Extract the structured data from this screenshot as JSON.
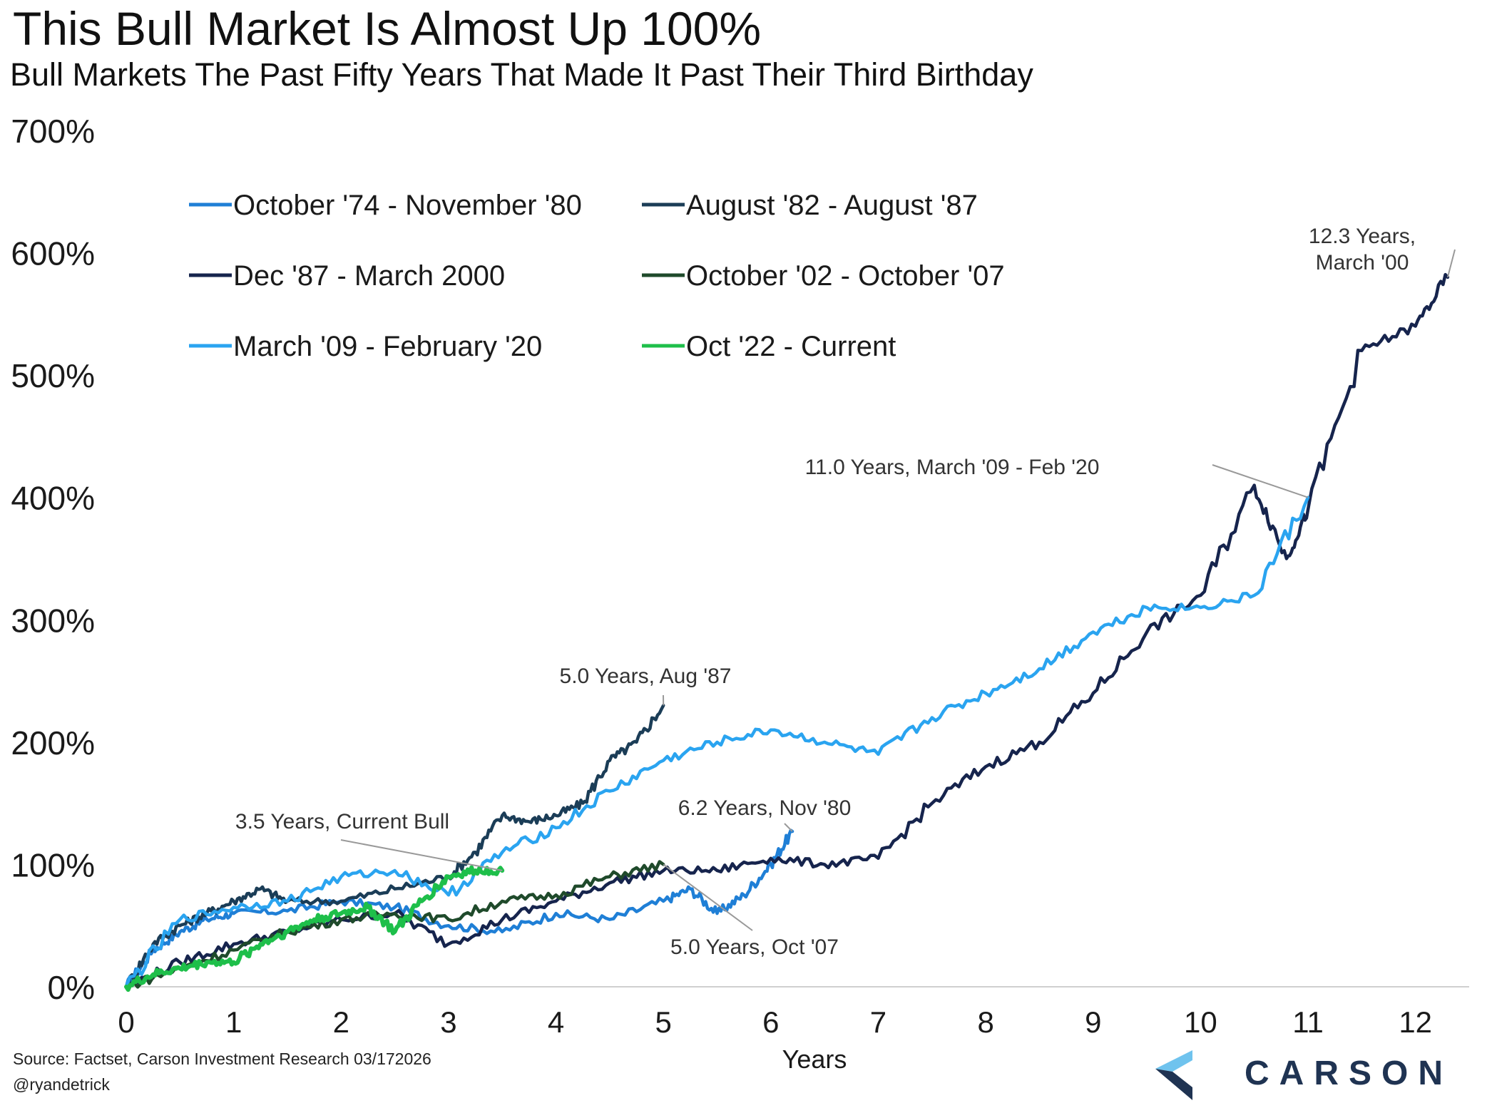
{
  "title": "This Bull Market Is Almost Up 100%",
  "subtitle": "Bull Markets The Past Fifty Years That Made It Past Their Third Birthday",
  "source": "Source: Factset, Carson Investment Research 03/172026",
  "handle": "@ryandetrick",
  "brand": "CARSON",
  "colors": {
    "axis": "#cfcfcf",
    "text": "#1a1a1a",
    "annotation_line": "#999999"
  },
  "chart_data": {
    "type": "line",
    "xlabel": "Years",
    "ylabel": "",
    "xlim": [
      0,
      12.5
    ],
    "ylim": [
      0,
      700
    ],
    "x_ticks": [
      0,
      1,
      2,
      3,
      4,
      5,
      6,
      7,
      8,
      9,
      10,
      11,
      12
    ],
    "x_tick_labels": [
      "0",
      "1",
      "2",
      "3",
      "4",
      "5",
      "6",
      "7",
      "8",
      "9",
      "10",
      "11",
      "12"
    ],
    "y_ticks": [
      0,
      100,
      200,
      300,
      400,
      500,
      600,
      700
    ],
    "y_tick_labels": [
      "0%",
      "100%",
      "200%",
      "300%",
      "400%",
      "500%",
      "600%",
      "700%"
    ],
    "grid": false,
    "legend_position": "top-left",
    "series": [
      {
        "name": "October '74 - November '80",
        "color": "#1f7fd6",
        "x": [
          0,
          0.25,
          0.5,
          0.75,
          1,
          1.5,
          2,
          2.5,
          3,
          3.5,
          4,
          4.5,
          5,
          5.25,
          5.5,
          5.75,
          6,
          6.2
        ],
        "y": [
          0,
          30,
          45,
          55,
          60,
          62,
          70,
          65,
          50,
          45,
          60,
          55,
          70,
          80,
          60,
          75,
          100,
          127
        ]
      },
      {
        "name": "August '82 - August '87",
        "color": "#1b3d57",
        "x": [
          0,
          0.25,
          0.5,
          0.75,
          1,
          1.25,
          1.5,
          2,
          2.5,
          3,
          3.25,
          3.5,
          3.75,
          4,
          4.25,
          4.5,
          4.75,
          5
        ],
        "y": [
          0,
          35,
          50,
          60,
          70,
          80,
          70,
          70,
          80,
          90,
          110,
          140,
          135,
          140,
          150,
          185,
          200,
          230
        ]
      },
      {
        "name": "Dec '87 - March 2000",
        "color": "#16244d",
        "x": [
          0,
          0.5,
          1,
          1.5,
          2,
          2.5,
          3,
          3.5,
          4,
          4.5,
          5,
          5.5,
          6,
          6.5,
          7,
          7.5,
          8,
          8.5,
          9,
          9.5,
          10,
          10.5,
          10.8,
          11,
          11.5,
          12,
          12.3
        ],
        "y": [
          0,
          20,
          35,
          45,
          55,
          60,
          35,
          55,
          70,
          85,
          95,
          95,
          105,
          100,
          105,
          150,
          180,
          200,
          240,
          290,
          320,
          410,
          350,
          390,
          520,
          540,
          580
        ]
      },
      {
        "name": "October '02 - October '07",
        "color": "#1f4a2b",
        "x": [
          0,
          0.5,
          1,
          1.5,
          2,
          2.5,
          3,
          3.5,
          4,
          4.5,
          5
        ],
        "y": [
          0,
          15,
          30,
          45,
          55,
          60,
          55,
          70,
          75,
          90,
          100
        ]
      },
      {
        "name": "March '09 - February '20",
        "color": "#2aa4f0",
        "x": [
          0,
          0.5,
          1,
          1.5,
          2,
          2.5,
          3,
          3.5,
          4,
          4.5,
          5,
          5.5,
          6,
          6.5,
          7,
          7.5,
          8,
          8.5,
          9,
          9.5,
          10,
          10.5,
          11
        ],
        "y": [
          0,
          55,
          65,
          70,
          90,
          95,
          75,
          110,
          130,
          160,
          185,
          200,
          210,
          200,
          190,
          220,
          240,
          260,
          290,
          310,
          310,
          320,
          400
        ]
      },
      {
        "name": "Oct '22 - Current",
        "color": "#1ebf4a",
        "x": [
          0,
          0.25,
          0.5,
          0.75,
          1,
          1.25,
          1.5,
          1.75,
          2,
          2.25,
          2.5,
          2.75,
          3,
          3.25,
          3.5
        ],
        "y": [
          0,
          10,
          15,
          20,
          20,
          35,
          45,
          55,
          60,
          65,
          45,
          70,
          90,
          95,
          95
        ]
      }
    ],
    "annotations": [
      {
        "text": "12.3 Years,",
        "text2": "March '00",
        "x": 12.3,
        "y": 580
      },
      {
        "text": "11.0 Years, March '09 - Feb '20",
        "x": 11.0,
        "y": 400
      },
      {
        "text": "5.0 Years, Aug '87",
        "x": 5.0,
        "y": 230
      },
      {
        "text": "3.5 Years, Current Bull",
        "x": 3.5,
        "y": 95
      },
      {
        "text": "6.2 Years, Nov '80",
        "x": 6.2,
        "y": 127
      },
      {
        "text": "5.0 Years, Oct '07",
        "x": 5.0,
        "y": 100
      }
    ]
  }
}
